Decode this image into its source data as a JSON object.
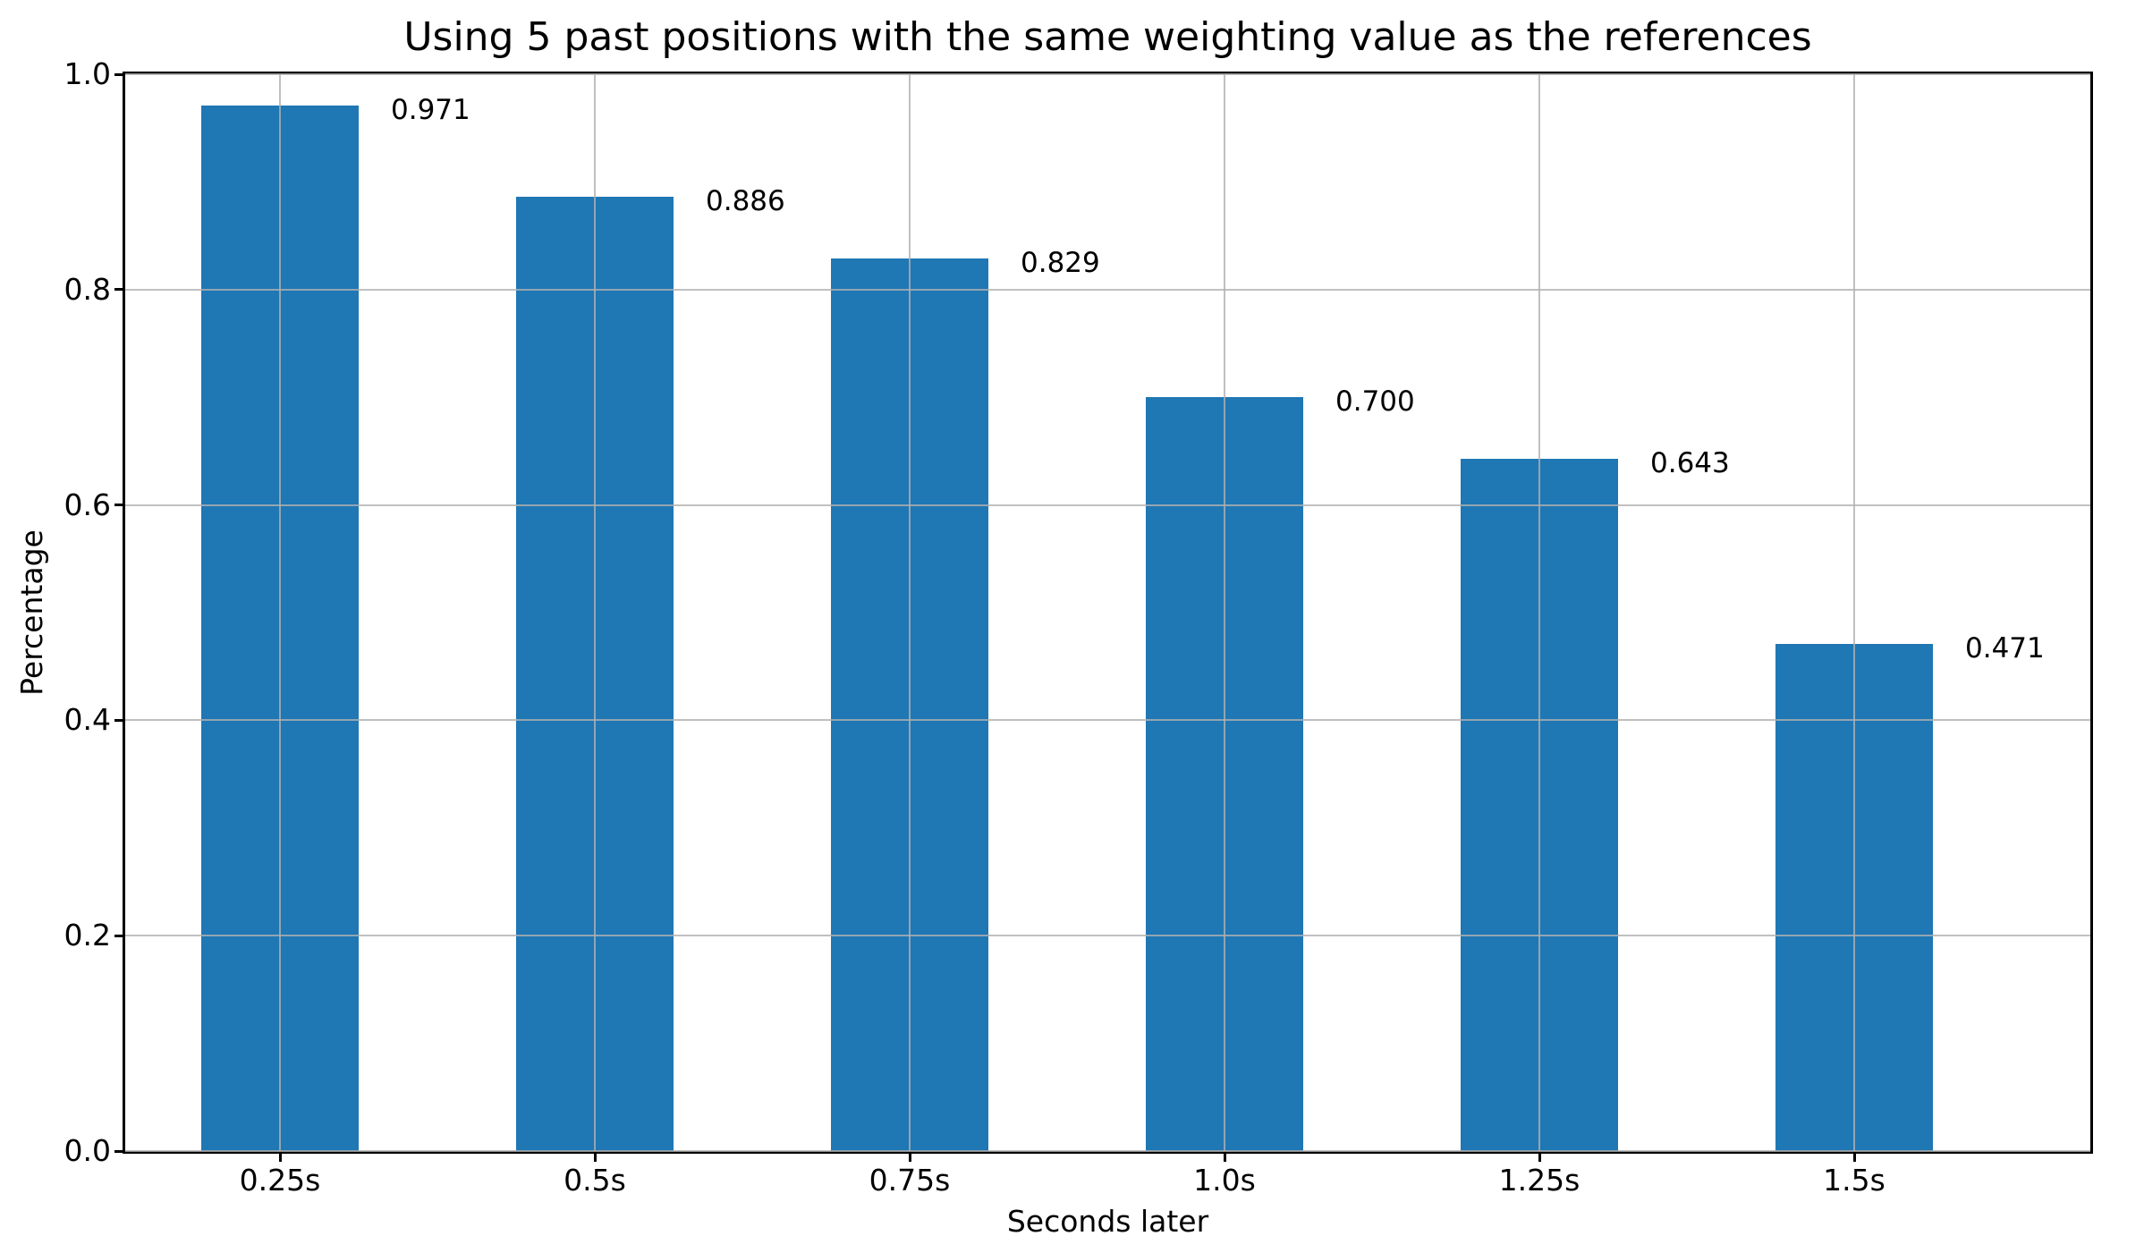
{
  "chart_data": {
    "type": "bar",
    "title": "Using 5 past positions with the same weighting value as the references",
    "xlabel": "Seconds later",
    "ylabel": "Percentage",
    "categories": [
      "0.25s",
      "0.5s",
      "0.75s",
      "1.0s",
      "1.25s",
      "1.5s"
    ],
    "values": [
      0.971,
      0.886,
      0.829,
      0.7,
      0.643,
      0.471
    ],
    "value_labels": [
      "0.971",
      "0.886",
      "0.829",
      "0.700",
      "0.643",
      "0.471"
    ],
    "ylim": [
      0.0,
      1.0
    ],
    "yticks": [
      0.0,
      0.2,
      0.4,
      0.6,
      0.8,
      1.0
    ],
    "ytick_labels": [
      "0.0",
      "0.2",
      "0.4",
      "0.6",
      "0.8",
      "1.0"
    ],
    "grid": "on",
    "legend": "none",
    "colors": {
      "bar": "#1f77b4",
      "grid": "rgba(176,176,176,0.8)",
      "spine": "#000000",
      "text": "#000000",
      "background": "#ffffff"
    }
  }
}
